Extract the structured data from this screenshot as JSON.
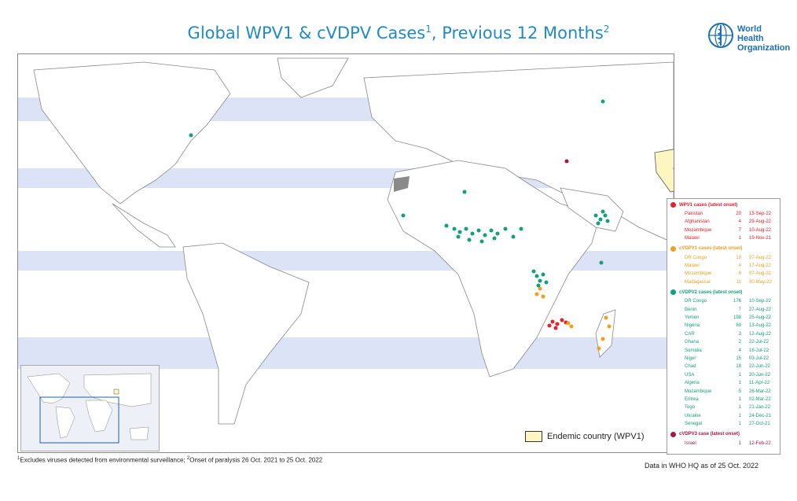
{
  "title": {
    "main": "Global WPV1 & cVDPV Cases",
    "sup1": "1",
    "mid": ", Previous 12 Months",
    "sup2": "2"
  },
  "logo": {
    "line1": "World Health",
    "line2": "Organization"
  },
  "endemic_label": "Endemic country (WPV1)",
  "footnote": {
    "sup1": "1",
    "text1": "Excludes viruses detected from environmental surveillance;",
    "sup2": "2",
    "text2": "Onset of paralysis 26 Oct. 2021 to 25 Oct. 2022"
  },
  "data_note": "Data in WHO HQ as of 25 Oct. 2022",
  "colors": {
    "wpv1": "#e8202a",
    "cvdpv1": "#f0a020",
    "cvdpv2": "#13a07c",
    "cvdpv3": "#a8154a",
    "endemic": "#fdf6c0",
    "ocean": "#dde3f7",
    "land": "#ffffff"
  },
  "legend": {
    "groups": [
      {
        "key": "wpv1",
        "heading": "WPV1 cases (latest onset)",
        "rows": [
          {
            "country": "Pakistan",
            "count": "20",
            "date": "15-Sep-22"
          },
          {
            "country": "Afghanistan",
            "count": "4",
            "date": "29-Aug-22"
          },
          {
            "country": "Mozambique",
            "count": "7",
            "date": "10-Aug-22"
          },
          {
            "country": "Malawi",
            "count": "1",
            "date": "19-Nov-21"
          }
        ]
      },
      {
        "key": "cvdpv1",
        "heading": "cVDPV1 cases (latest onset)",
        "rows": [
          {
            "country": "DR Congo",
            "count": "19",
            "date": "27-Aug-22"
          },
          {
            "country": "Malawi",
            "count": "4",
            "date": "17-Aug-22"
          },
          {
            "country": "Mozambique",
            "count": "6",
            "date": "07-Aug-22"
          },
          {
            "country": "Madagascar",
            "count": "11",
            "date": "30-May-22"
          }
        ]
      },
      {
        "key": "cvdpv2",
        "heading": "cVDPV2 cases (latest onset)",
        "rows": [
          {
            "country": "DR Congo",
            "count": "176",
            "date": "10-Sep-22"
          },
          {
            "country": "Benin",
            "count": "7",
            "date": "27-Aug-22"
          },
          {
            "country": "Yemen",
            "count": "198",
            "date": "25-Aug-22"
          },
          {
            "country": "Nigeria",
            "count": "69",
            "date": "13-Aug-22"
          },
          {
            "country": "CAR",
            "count": "3",
            "date": "12-Aug-22"
          },
          {
            "country": "Ghana",
            "count": "2",
            "date": "22-Jul-22"
          },
          {
            "country": "Somalia",
            "count": "4",
            "date": "16-Jul-22"
          },
          {
            "country": "Niger",
            "count": "15",
            "date": "03-Jul-22"
          },
          {
            "country": "Chad",
            "count": "18",
            "date": "22-Jun-22"
          },
          {
            "country": "USA",
            "count": "1",
            "date": "20-Jun-22"
          },
          {
            "country": "Algeria",
            "count": "1",
            "date": "11-Apr-22"
          },
          {
            "country": "Mozambique",
            "count": "5",
            "date": "26-Mar-22"
          },
          {
            "country": "Eritrea",
            "count": "1",
            "date": "02-Mar-22"
          },
          {
            "country": "Togo",
            "count": "1",
            "date": "21-Jan-22"
          },
          {
            "country": "Ukraine",
            "count": "1",
            "date": "24-Dec-21"
          },
          {
            "country": "Senegal",
            "count": "1",
            "date": "27-Oct-21"
          }
        ]
      },
      {
        "key": "cvdpv3",
        "heading": "cVDPV3 case (latest onset)",
        "rows": [
          {
            "country": "Israel",
            "count": "1",
            "date": "12-Feb-22"
          }
        ]
      }
    ]
  }
}
